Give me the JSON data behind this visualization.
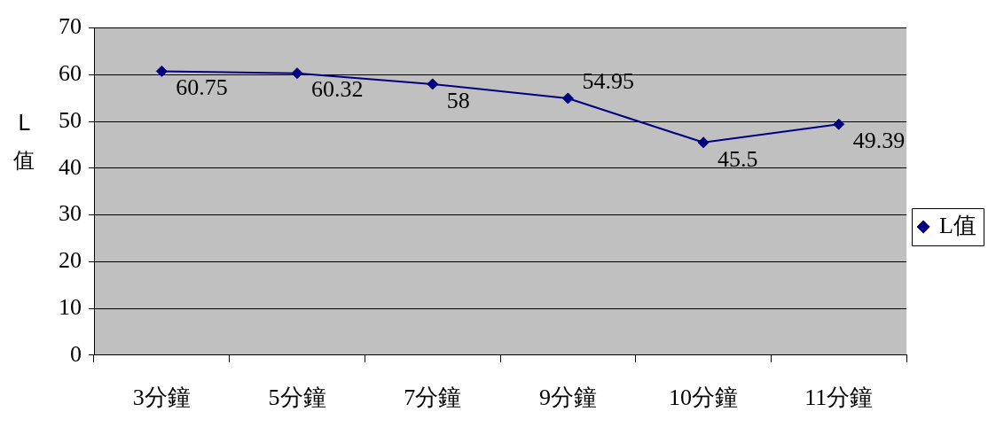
{
  "chart_data": {
    "type": "line",
    "ylabel": "L值",
    "categories": [
      "3分鐘",
      "5分鐘",
      "7分鐘",
      "9分鐘",
      "10分鐘",
      "11分鐘"
    ],
    "series": [
      {
        "name": "L值",
        "color": "#000080",
        "values": [
          60.75,
          60.32,
          58,
          54.95,
          45.5,
          49.39
        ]
      }
    ],
    "ylim": [
      0,
      70
    ],
    "yticks": [
      0,
      10,
      20,
      30,
      40,
      50,
      60,
      70
    ],
    "grid": "y",
    "legend": "right",
    "marker": "diamond",
    "line_style": "solid",
    "data_labels": true
  }
}
